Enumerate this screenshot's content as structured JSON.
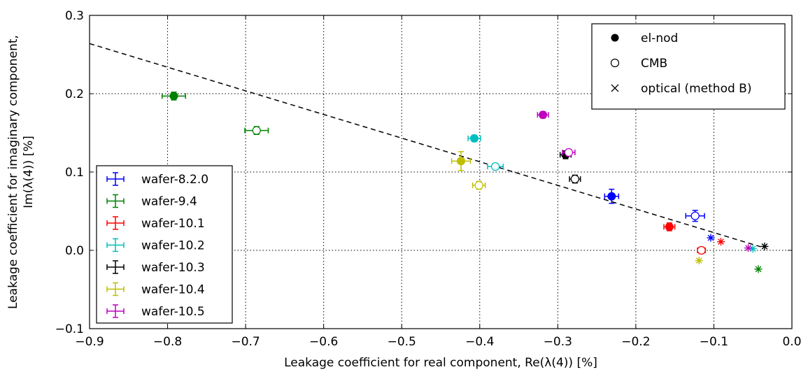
{
  "chart_data": {
    "type": "scatter",
    "xlabel": "Leakage coefficient for real component, Re(λ(4)) [%]",
    "ylabel_line1": "Leakage coefficient for imaginary component,",
    "ylabel_line2": "Im(λ(4)) [%]",
    "xlim": [
      -0.9,
      0.0
    ],
    "ylim": [
      -0.1,
      0.3
    ],
    "xticks": [
      -0.9,
      -0.8,
      -0.7,
      -0.6,
      -0.5,
      -0.4,
      -0.3,
      -0.2,
      -0.1,
      0.0
    ],
    "xtick_labels": [
      "−0.9",
      "−0.8",
      "−0.7",
      "−0.6",
      "−0.5",
      "−0.4",
      "−0.3",
      "−0.2",
      "−0.1",
      "0.0"
    ],
    "yticks": [
      -0.1,
      0.0,
      0.1,
      0.2,
      0.3
    ],
    "ytick_labels": [
      "−0.1",
      "0.0",
      "0.1",
      "0.2",
      "0.3"
    ],
    "grid": true,
    "fit_line": {
      "style": "dashed",
      "color": "#000000",
      "x": [
        -0.9,
        -0.04
      ],
      "y": [
        0.264,
        0.0045
      ]
    },
    "marker_legend": {
      "placement": "top-right",
      "entries": [
        {
          "marker": "filled-circle",
          "label": "el-nod"
        },
        {
          "marker": "open-circle",
          "label": "CMB"
        },
        {
          "marker": "cross",
          "label": "optical (method B)"
        }
      ]
    },
    "series_legend": {
      "placement": "bottom-left"
    },
    "series": [
      {
        "name": "wafer-8.2.0",
        "color": "#0000ff",
        "el_nod": {
          "x": -0.231,
          "y": 0.069,
          "xerr": 0.009,
          "yerr": 0.009
        },
        "cmb": {
          "x": -0.124,
          "y": 0.044,
          "xerr": 0.012,
          "yerr": 0.007
        },
        "optical": {
          "x": -0.104,
          "y": 0.016
        }
      },
      {
        "name": "wafer-9.4",
        "color": "#008000",
        "el_nod": {
          "x": -0.792,
          "y": 0.197,
          "xerr": 0.015,
          "yerr": 0.005
        },
        "cmb": {
          "x": -0.686,
          "y": 0.153,
          "xerr": 0.015,
          "yerr": 0.005
        },
        "optical": {
          "x": -0.043,
          "y": -0.024
        }
      },
      {
        "name": "wafer-10.1",
        "color": "#ff0000",
        "el_nod": {
          "x": -0.157,
          "y": 0.03,
          "xerr": 0.007,
          "yerr": 0.005
        },
        "cmb": {
          "x": -0.116,
          "y": 0.0,
          "xerr": 0.005,
          "yerr": 0.004
        },
        "optical": {
          "x": -0.091,
          "y": 0.011
        }
      },
      {
        "name": "wafer-10.2",
        "color": "#00bfbf",
        "el_nod": {
          "x": -0.407,
          "y": 0.143,
          "xerr": 0.008,
          "yerr": 0.004
        },
        "cmb": {
          "x": -0.38,
          "y": 0.107,
          "xerr": 0.01,
          "yerr": 0.004
        },
        "optical": {
          "x": -0.05,
          "y": 0.002
        }
      },
      {
        "name": "wafer-10.3",
        "color": "#000000",
        "el_nod": {
          "x": -0.29,
          "y": 0.122,
          "xerr": 0.007,
          "yerr": 0.005
        },
        "cmb": {
          "x": -0.278,
          "y": 0.091,
          "xerr": 0.007,
          "yerr": 0.005
        },
        "optical": {
          "x": -0.035,
          "y": 0.005
        }
      },
      {
        "name": "wafer-10.4",
        "color": "#bfbf00",
        "el_nod": {
          "x": -0.424,
          "y": 0.114,
          "xerr": 0.012,
          "yerr": 0.012
        },
        "cmb": {
          "x": -0.401,
          "y": 0.083,
          "xerr": 0.008,
          "yerr": 0.005
        },
        "optical": {
          "x": -0.119,
          "y": -0.013
        }
      },
      {
        "name": "wafer-10.5",
        "color": "#bf00bf",
        "el_nod": {
          "x": -0.319,
          "y": 0.173,
          "xerr": 0.007,
          "yerr": 0.004
        },
        "cmb": {
          "x": -0.286,
          "y": 0.125,
          "xerr": 0.008,
          "yerr": 0.004
        },
        "optical": {
          "x": -0.056,
          "y": 0.003
        }
      }
    ]
  }
}
